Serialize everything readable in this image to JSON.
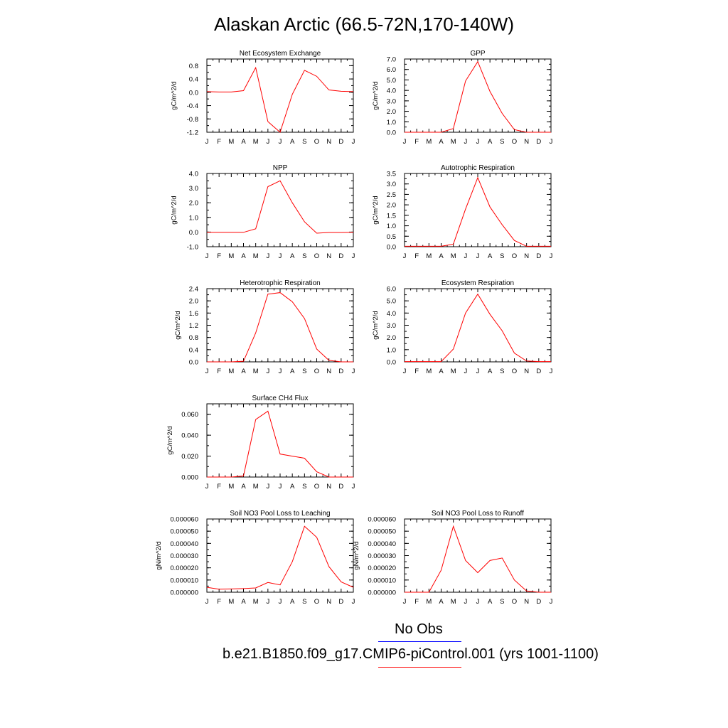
{
  "title": "Alaskan Arctic (66.5-72N,170-140W)",
  "colors": {
    "model_line": "#ff0000",
    "obs_line": "#0000ff"
  },
  "legend": {
    "obs_label": "No Obs",
    "model_label": "b.e21.B1850.f09_g17.CMIP6-piControl.001 (yrs 1001-1100)"
  },
  "months": [
    "J",
    "F",
    "M",
    "A",
    "M",
    "J",
    "J",
    "A",
    "S",
    "O",
    "N",
    "D",
    "J"
  ],
  "chart_data": [
    {
      "type": "line",
      "title": "Net Ecosystem Exchange",
      "ylabel": "gC/m^2/d",
      "ylim": [
        -1.2,
        1.0
      ],
      "yticks": [
        -1.2,
        -0.8,
        -0.4,
        0.0,
        0.4,
        0.8
      ],
      "yticklabels": [
        "-1.2",
        "-0.8",
        "-0.4",
        "0.0",
        "0.4",
        "0.8"
      ],
      "values": [
        0.02,
        0.01,
        0.01,
        0.05,
        0.74,
        -0.88,
        -1.2,
        -0.06,
        0.66,
        0.48,
        0.07,
        0.03,
        0.02
      ]
    },
    {
      "type": "line",
      "title": "GPP",
      "ylabel": "gC/m^2/d",
      "ylim": [
        0,
        7.0
      ],
      "yticks": [
        0,
        1,
        2,
        3,
        4,
        5,
        6,
        7
      ],
      "yticklabels": [
        "0.0",
        "1.0",
        "2.0",
        "3.0",
        "4.0",
        "5.0",
        "6.0",
        "7.0"
      ],
      "values": [
        0.0,
        0.0,
        0.0,
        0.0,
        0.35,
        4.9,
        6.75,
        3.9,
        1.8,
        0.25,
        0.0,
        0.0,
        0.0
      ]
    },
    {
      "type": "line",
      "title": "NPP",
      "ylabel": "gC/m^2/d",
      "ylim": [
        -1.0,
        4.0
      ],
      "yticks": [
        -1,
        0,
        1,
        2,
        3,
        4
      ],
      "yticklabels": [
        "-1.0",
        "0.0",
        "1.0",
        "2.0",
        "3.0",
        "4.0"
      ],
      "values": [
        -0.02,
        -0.02,
        -0.02,
        -0.02,
        0.22,
        3.1,
        3.5,
        2.0,
        0.7,
        -0.08,
        -0.03,
        -0.03,
        -0.02
      ]
    },
    {
      "type": "line",
      "title": "Autotrophic Respiration",
      "ylabel": "gC/m^2/d",
      "ylim": [
        0,
        3.5
      ],
      "yticks": [
        0,
        0.5,
        1,
        1.5,
        2,
        2.5,
        3,
        3.5
      ],
      "yticklabels": [
        "0.0",
        "0.5",
        "1.0",
        "1.5",
        "2.0",
        "2.5",
        "3.0",
        "3.5"
      ],
      "values": [
        0.02,
        0.02,
        0.02,
        0.02,
        0.12,
        1.8,
        3.3,
        1.9,
        1.05,
        0.3,
        0.02,
        0.02,
        0.02
      ]
    },
    {
      "type": "line",
      "title": "Heterotrophic Respiration",
      "ylabel": "gC/m^2/d",
      "ylim": [
        0,
        2.4
      ],
      "yticks": [
        0,
        0.4,
        0.8,
        1.2,
        1.6,
        2.0,
        2.4
      ],
      "yticklabels": [
        "0.0",
        "0.4",
        "0.8",
        "1.2",
        "1.6",
        "2.0",
        "2.4"
      ],
      "values": [
        0.0,
        0.0,
        0.0,
        0.02,
        0.95,
        2.22,
        2.27,
        1.97,
        1.42,
        0.42,
        0.05,
        0.0,
        0.0
      ]
    },
    {
      "type": "line",
      "title": "Ecosystem Respiration",
      "ylabel": "gC/m^2/d",
      "ylim": [
        0,
        6.0
      ],
      "yticks": [
        0,
        1,
        2,
        3,
        4,
        5,
        6
      ],
      "yticklabels": [
        "0.0",
        "1.0",
        "2.0",
        "3.0",
        "4.0",
        "5.0",
        "6.0"
      ],
      "values": [
        0.02,
        0.02,
        0.02,
        0.02,
        1.05,
        4.0,
        5.55,
        3.9,
        2.55,
        0.72,
        0.07,
        0.02,
        0.02
      ]
    },
    {
      "type": "line",
      "title": "Surface CH4 Flux",
      "ylabel": "gC/m^2/d",
      "ylim": [
        0,
        0.07
      ],
      "yticks": [
        0,
        0.02,
        0.04,
        0.06
      ],
      "yticklabels": [
        "0.000",
        "0.020",
        "0.040",
        "0.060"
      ],
      "values": [
        0.0,
        0.0,
        0.0,
        0.001,
        0.055,
        0.063,
        0.022,
        0.02,
        0.018,
        0.005,
        0.0,
        0.0,
        0.0
      ]
    },
    {
      "type": "line",
      "title": "Soil NO3 Pool Loss to Leaching",
      "ylabel": "gN/m^2/d",
      "ylim": [
        0,
        6e-05
      ],
      "yticks": [
        0,
        1e-05,
        2e-05,
        3e-05,
        4e-05,
        5e-05,
        6e-05
      ],
      "yticklabels": [
        "0.000000",
        "0.000010",
        "0.000020",
        "0.000030",
        "0.000040",
        "0.000050",
        "0.000060"
      ],
      "values": [
        4e-06,
        2.5e-06,
        2.7e-06,
        3e-06,
        3.5e-06,
        8e-06,
        6e-06,
        2.5e-05,
        5.4e-05,
        4.5e-05,
        2.1e-05,
        8.5e-06,
        4e-06
      ]
    },
    {
      "type": "line",
      "title": "Soil NO3 Pool Loss to Runoff",
      "ylabel": "gN/m^2/d",
      "ylim": [
        0,
        6e-05
      ],
      "yticks": [
        0,
        1e-05,
        2e-05,
        3e-05,
        4e-05,
        5e-05,
        6e-05
      ],
      "yticklabels": [
        "0.000000",
        "0.000010",
        "0.000020",
        "0.000030",
        "0.000040",
        "0.000050",
        "0.000060"
      ],
      "values": [
        0.0,
        0.0,
        0.0,
        1.8e-05,
        5.4e-05,
        2.6e-05,
        1.6e-05,
        2.6e-05,
        2.8e-05,
        1e-05,
        1e-06,
        0.0,
        0.0
      ]
    }
  ]
}
